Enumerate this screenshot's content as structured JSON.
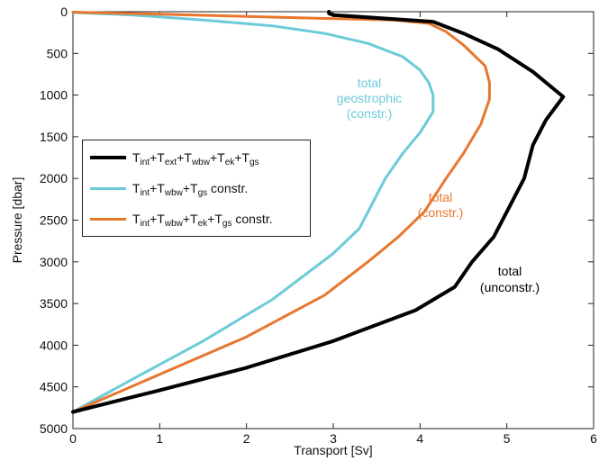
{
  "chart_data": {
    "type": "line",
    "xlabel": "Transport [Sv]",
    "ylabel": "Pressure [dbar]",
    "xlim": [
      0,
      6
    ],
    "ylim": [
      0,
      5000
    ],
    "y_inverted": true,
    "grid": false,
    "xticks": [
      "0",
      "1",
      "2",
      "3",
      "4",
      "5",
      "6"
    ],
    "yticks": [
      "0",
      "500",
      "1000",
      "1500",
      "2000",
      "2500",
      "3000",
      "3500",
      "4000",
      "4500",
      "5000"
    ],
    "legend_position": "middle-left",
    "series": [
      {
        "name": "Tint+Text+Twbw+Tek+Tgs",
        "color": "#000000",
        "points": [
          [
            2.95,
            0
          ],
          [
            2.95,
            20
          ],
          [
            3.0,
            40
          ],
          [
            4.15,
            120
          ],
          [
            4.5,
            260
          ],
          [
            4.9,
            450
          ],
          [
            5.3,
            720
          ],
          [
            5.65,
            1020
          ],
          [
            5.45,
            1300
          ],
          [
            5.3,
            1600
          ],
          [
            5.2,
            2000
          ],
          [
            5.0,
            2400
          ],
          [
            4.85,
            2700
          ],
          [
            4.6,
            3000
          ],
          [
            4.4,
            3300
          ],
          [
            3.95,
            3580
          ],
          [
            3.0,
            3950
          ],
          [
            2.0,
            4270
          ],
          [
            1.0,
            4540
          ],
          [
            0.0,
            4800
          ]
        ],
        "annotation": [
          "total",
          "(unconstr.)"
        ]
      },
      {
        "name": "Tint+Twbw+Tgs constr.",
        "color": "#6ccbd8",
        "points": [
          [
            0.0,
            10
          ],
          [
            0.7,
            40
          ],
          [
            1.5,
            100
          ],
          [
            2.3,
            170
          ],
          [
            2.9,
            260
          ],
          [
            3.4,
            380
          ],
          [
            3.8,
            540
          ],
          [
            4.0,
            700
          ],
          [
            4.1,
            850
          ],
          [
            4.15,
            1000
          ],
          [
            4.15,
            1200
          ],
          [
            4.0,
            1450
          ],
          [
            3.8,
            1700
          ],
          [
            3.6,
            2000
          ],
          [
            3.45,
            2300
          ],
          [
            3.3,
            2600
          ],
          [
            3.0,
            2900
          ],
          [
            2.3,
            3450
          ],
          [
            1.5,
            3950
          ],
          [
            0.7,
            4400
          ],
          [
            0.0,
            4800
          ]
        ],
        "annotation": [
          "total",
          "geostrophic",
          "(constr.)"
        ]
      },
      {
        "name": "Tint+Twbw+Tek+Tgs constr.",
        "color": "#e8772e",
        "points": [
          [
            0.0,
            5
          ],
          [
            1.0,
            30
          ],
          [
            2.5,
            70
          ],
          [
            3.7,
            100
          ],
          [
            4.1,
            140
          ],
          [
            4.3,
            240
          ],
          [
            4.5,
            400
          ],
          [
            4.75,
            650
          ],
          [
            4.8,
            850
          ],
          [
            4.8,
            1050
          ],
          [
            4.7,
            1350
          ],
          [
            4.5,
            1700
          ],
          [
            4.3,
            2000
          ],
          [
            4.05,
            2400
          ],
          [
            3.75,
            2700
          ],
          [
            3.4,
            3000
          ],
          [
            2.9,
            3400
          ],
          [
            2.0,
            3900
          ],
          [
            1.0,
            4350
          ],
          [
            0.0,
            4800
          ]
        ],
        "annotation": [
          "total",
          "(constr.)"
        ]
      }
    ]
  },
  "legend": {
    "items": [
      {
        "color": "#000000",
        "line_width": 4,
        "base": "T",
        "parts": [
          [
            "int",
            "+T"
          ],
          [
            "ext",
            "+T"
          ],
          [
            "wbw",
            "+T"
          ],
          [
            "ek",
            "+T"
          ],
          [
            "gs",
            ""
          ]
        ],
        "tail": ""
      },
      {
        "color": "#6ccbd8",
        "line_width": 3,
        "base": "T",
        "parts": [
          [
            "int",
            "+T"
          ],
          [
            "wbw",
            "+T"
          ],
          [
            "gs",
            ""
          ]
        ],
        "tail": " constr."
      },
      {
        "color": "#e8772e",
        "line_width": 3,
        "base": "T",
        "parts": [
          [
            "int",
            "+T"
          ],
          [
            "wbw",
            "+T"
          ],
          [
            "ek",
            "+T"
          ],
          [
            "gs",
            ""
          ]
        ],
        "tail": " constr."
      }
    ]
  }
}
